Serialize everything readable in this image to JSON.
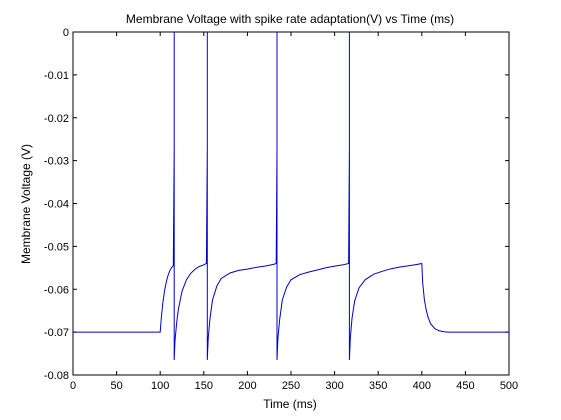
{
  "chart_data": {
    "type": "line",
    "title": "Membrane Voltage with spike rate adaptation(V) vs Time (ms)",
    "xlabel": "Time (ms)",
    "ylabel": "Membrane Voltage (V)",
    "xlim": [
      0,
      500
    ],
    "ylim": [
      -0.08,
      0
    ],
    "xticks": [
      0,
      50,
      100,
      150,
      200,
      250,
      300,
      350,
      400,
      450,
      500
    ],
    "xtick_labels": [
      "0",
      "50",
      "100",
      "150",
      "200",
      "250",
      "300",
      "350",
      "400",
      "450",
      "500"
    ],
    "yticks": [
      0,
      -0.01,
      -0.02,
      -0.03,
      -0.04,
      -0.05,
      -0.06,
      -0.07,
      -0.08
    ],
    "ytick_labels": [
      "0",
      "-0.01",
      "-0.02",
      "-0.03",
      "-0.04",
      "-0.05",
      "-0.06",
      "-0.07",
      "-0.08"
    ],
    "grid": false,
    "line_color": "#0000cc",
    "series": [
      {
        "x": [
          0,
          100,
          101,
          103,
          105,
          107,
          109,
          111,
          113,
          115,
          116,
          116,
          116,
          116,
          117,
          119,
          121,
          125,
          130,
          135,
          140,
          145,
          150,
          153,
          154,
          154,
          154,
          154,
          155,
          157,
          160,
          165,
          170,
          180,
          190,
          200,
          210,
          220,
          230,
          233,
          234,
          234,
          234,
          234,
          235,
          237,
          240,
          245,
          250,
          260,
          270,
          280,
          290,
          300,
          310,
          316,
          317,
          317,
          317,
          317,
          318,
          320,
          323,
          328,
          335,
          345,
          355,
          365,
          375,
          385,
          395,
          400,
          401,
          403,
          405,
          407,
          410,
          415,
          420,
          425,
          430,
          440,
          450,
          500
        ],
        "y": [
          -0.07,
          -0.07,
          -0.0672,
          -0.0632,
          -0.0603,
          -0.0583,
          -0.0568,
          -0.0557,
          -0.055,
          -0.0545,
          -0.027,
          0,
          -0.038,
          -0.0765,
          -0.072,
          -0.0675,
          -0.0645,
          -0.0605,
          -0.0578,
          -0.0563,
          -0.0553,
          -0.0547,
          -0.0543,
          -0.054,
          -0.027,
          0,
          -0.038,
          -0.0765,
          -0.0715,
          -0.067,
          -0.0625,
          -0.0592,
          -0.0575,
          -0.0562,
          -0.0556,
          -0.0553,
          -0.0549,
          -0.0546,
          -0.0542,
          -0.054,
          -0.027,
          0,
          -0.038,
          -0.0765,
          -0.0715,
          -0.067,
          -0.0625,
          -0.0595,
          -0.0578,
          -0.0566,
          -0.056,
          -0.0555,
          -0.055,
          -0.0546,
          -0.0543,
          -0.054,
          -0.027,
          0,
          -0.038,
          -0.0765,
          -0.0715,
          -0.0668,
          -0.0627,
          -0.0597,
          -0.0578,
          -0.0565,
          -0.0558,
          -0.0552,
          -0.0548,
          -0.0545,
          -0.0542,
          -0.054,
          -0.0585,
          -0.0625,
          -0.0648,
          -0.0664,
          -0.068,
          -0.0692,
          -0.0697,
          -0.0699,
          -0.07,
          -0.07,
          -0.07,
          -0.07
        ]
      }
    ]
  }
}
